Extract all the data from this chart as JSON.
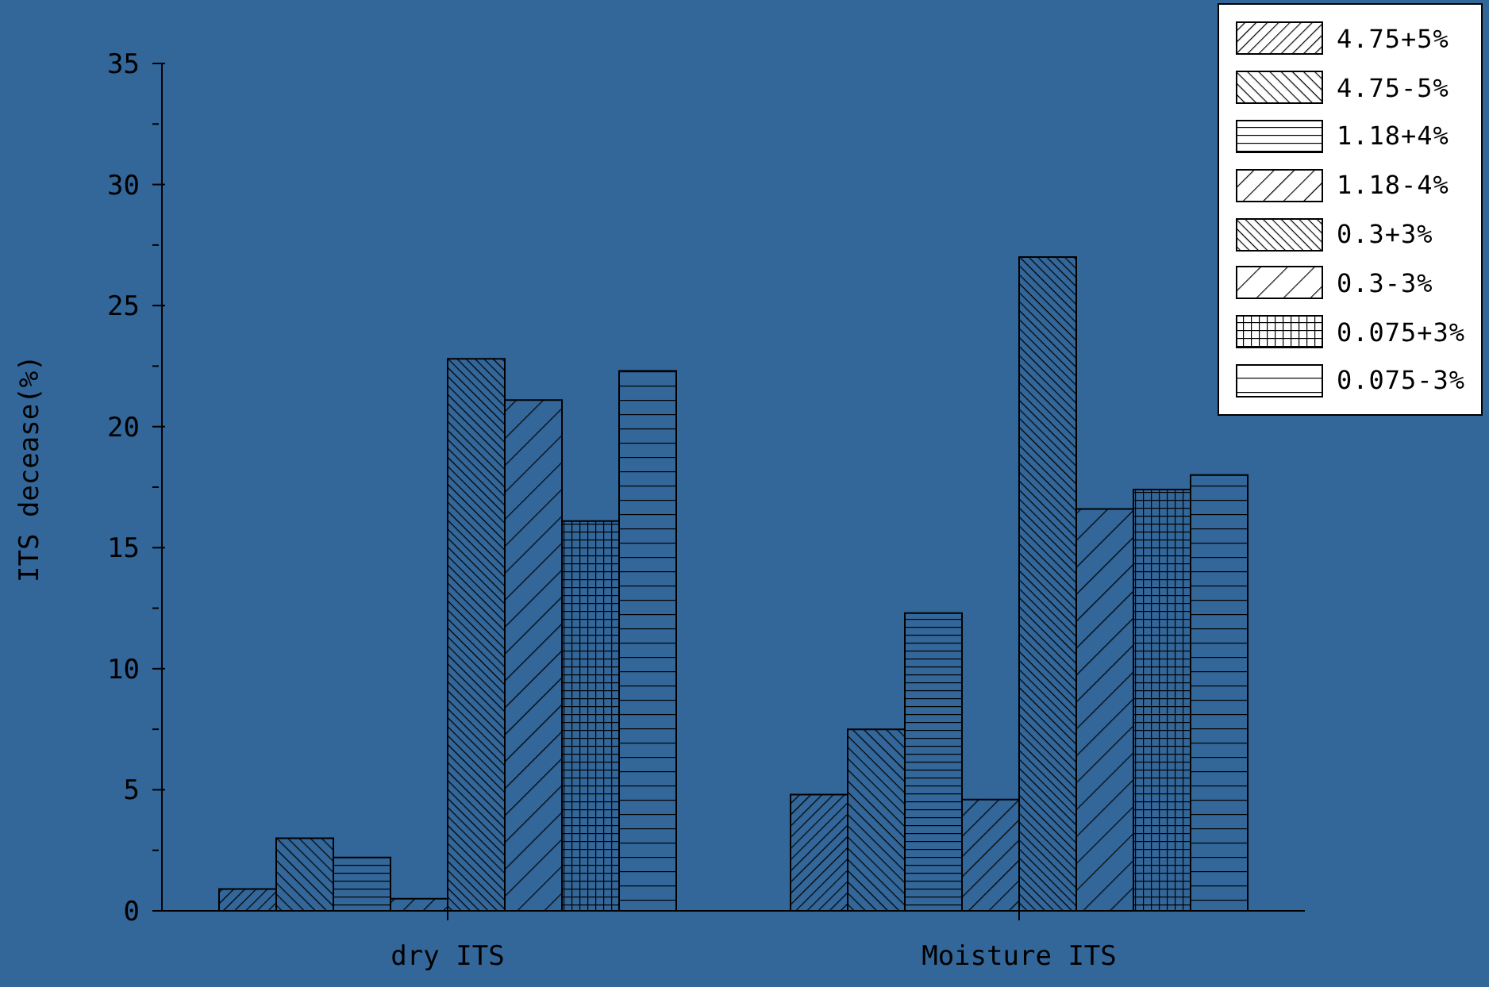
{
  "chart_data": {
    "type": "bar",
    "ylabel": "ITS decease(%)",
    "categories": [
      "dry ITS",
      "Moisture ITS"
    ],
    "series": [
      {
        "name": "4.75+5%",
        "color": "#000000",
        "values": [
          0.9,
          4.8
        ]
      },
      {
        "name": "4.75-5%",
        "color": "#000000",
        "values": [
          3.0,
          7.5
        ]
      },
      {
        "name": "1.18+4%",
        "color": "#000000",
        "values": [
          2.2,
          12.3
        ]
      },
      {
        "name": "1.18-4%",
        "color": "#000000",
        "values": [
          0.5,
          4.6
        ]
      },
      {
        "name": "0.3+3%",
        "color": "#000000",
        "values": [
          22.8,
          27.0
        ]
      },
      {
        "name": "0.3-3%",
        "color": "#000000",
        "values": [
          21.1,
          16.6
        ]
      },
      {
        "name": "0.075+3%",
        "color": "#000000",
        "values": [
          16.1,
          17.4
        ]
      },
      {
        "name": "0.075-3%",
        "color": "#000000",
        "values": [
          22.3,
          18.0
        ]
      }
    ],
    "ylim": [
      0,
      35
    ],
    "yticks": [
      0,
      {
        "value": 2.5,
        "label": null
      },
      5,
      {
        "value": 7.5,
        "label": null
      },
      10,
      {
        "value": 12.5,
        "label": null
      },
      15,
      {
        "value": 17.5,
        "label": null
      },
      20,
      {
        "value": 22.5,
        "label": null
      },
      25,
      {
        "value": 27.5,
        "label": null
      },
      30,
      {
        "value": 32.5,
        "label": null
      },
      35
    ],
    "grid": false,
    "legend": "top right"
  }
}
